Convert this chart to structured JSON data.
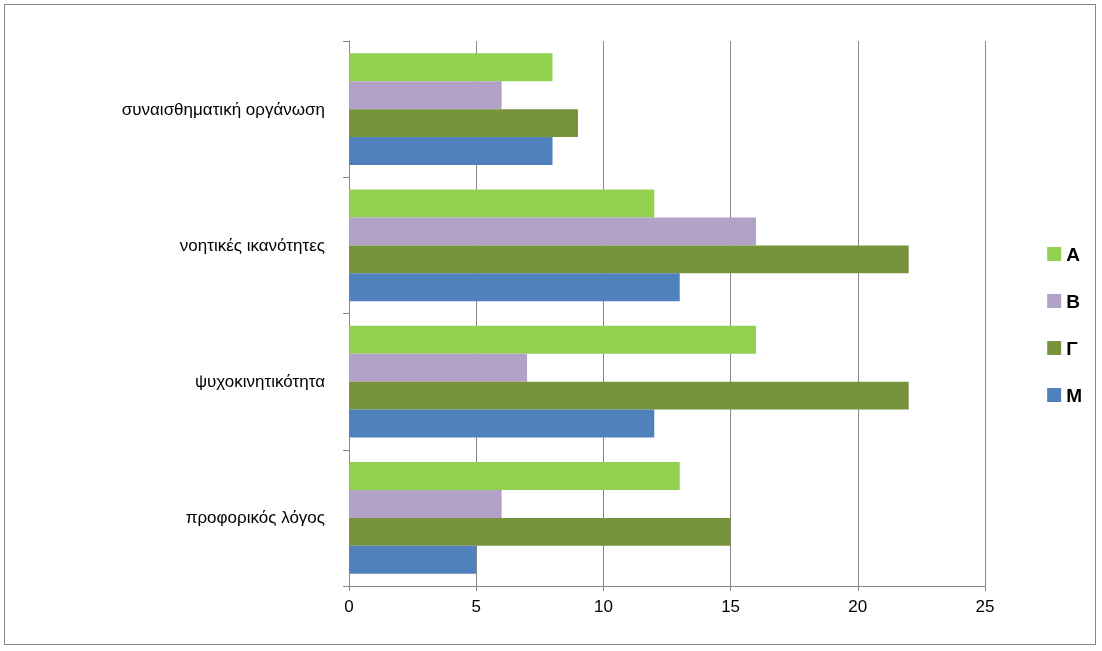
{
  "chart_data": {
    "type": "bar",
    "orientation": "horizontal",
    "categories": [
      "συναισθηματική οργάνωση",
      "νοητικές ικανότητες",
      "ψυχοκινητικότητα",
      "προφορικός λόγος"
    ],
    "series": [
      {
        "name": "Α",
        "color": "#92d050",
        "values": [
          8,
          12,
          16,
          13
        ]
      },
      {
        "name": "Β",
        "color": "#b2a2c7",
        "values": [
          6,
          16,
          7,
          6
        ]
      },
      {
        "name": "Γ",
        "color": "#77933c",
        "values": [
          9,
          22,
          22,
          15
        ]
      },
      {
        "name": "Μ",
        "color": "#4f81bd",
        "values": [
          8,
          13,
          12,
          5
        ]
      }
    ],
    "xlim": [
      0,
      25
    ],
    "xticks": [
      0,
      5,
      10,
      15,
      20,
      25
    ],
    "grid": "x",
    "legend": "right"
  }
}
